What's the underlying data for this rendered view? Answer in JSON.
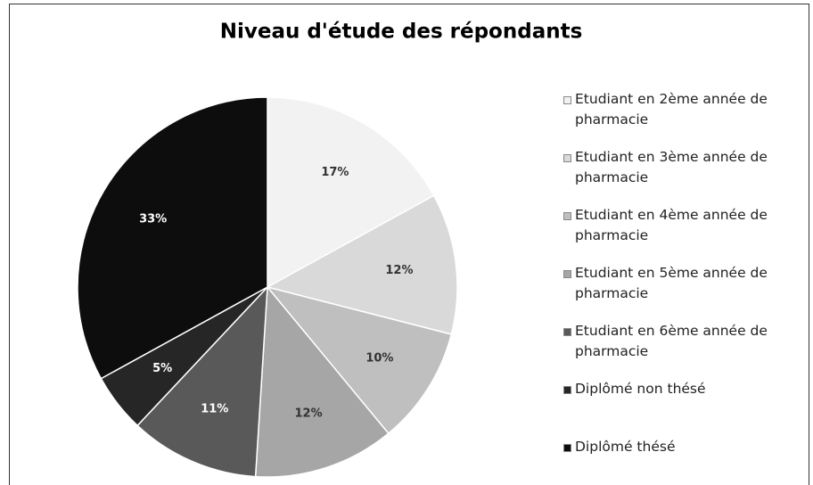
{
  "chart_data": {
    "type": "pie",
    "title": "Niveau d'étude des répondants",
    "categories": [
      "Etudiant en 2ème année de pharmacie",
      "Etudiant en 3ème année de pharmacie",
      "Etudiant en 4ème année de pharmacie",
      "Etudiant en 5ème année de pharmacie",
      "Etudiant en 6ème année de pharmacie",
      "Diplômé non thésé",
      "Diplômé thésé"
    ],
    "values": [
      17,
      12,
      10,
      12,
      11,
      5,
      33
    ],
    "value_labels": [
      "17%",
      "12%",
      "10%",
      "12%",
      "11%",
      "5%",
      "33%"
    ],
    "colors": [
      "#f2f2f2",
      "#d9d9d9",
      "#bfbfbf",
      "#a6a6a6",
      "#595959",
      "#262626",
      "#0d0d0d"
    ],
    "legend": "right"
  }
}
